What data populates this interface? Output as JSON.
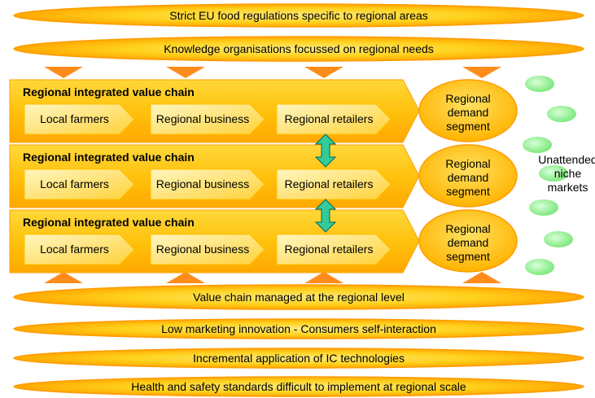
{
  "top_bars": [
    "Strict EU food regulations specific to regional areas",
    "Knowledge organisations focussed on regional needs"
  ],
  "chains": [
    {
      "title": "Regional integrated value chain",
      "steps": [
        "Local farmers",
        "Regional business",
        "Regional retailers"
      ],
      "demand": "Regional demand segment"
    },
    {
      "title": "Regional integrated value chain",
      "steps": [
        "Local farmers",
        "Regional business",
        "Regional retailers"
      ],
      "demand": "Regional demand segment"
    },
    {
      "title": "Regional integrated value chain",
      "steps": [
        "Local farmers",
        "Regional business",
        "Regional retailers"
      ],
      "demand": "Regional demand segment"
    }
  ],
  "niche_label": "Unattended niche markets",
  "bottom_bars": [
    "Value chain managed at the regional level",
    "Low marketing innovation - Consumers self-interaction",
    "Incremental application of IC technologies",
    "Health and safety standards difficult to implement at regional scale"
  ]
}
